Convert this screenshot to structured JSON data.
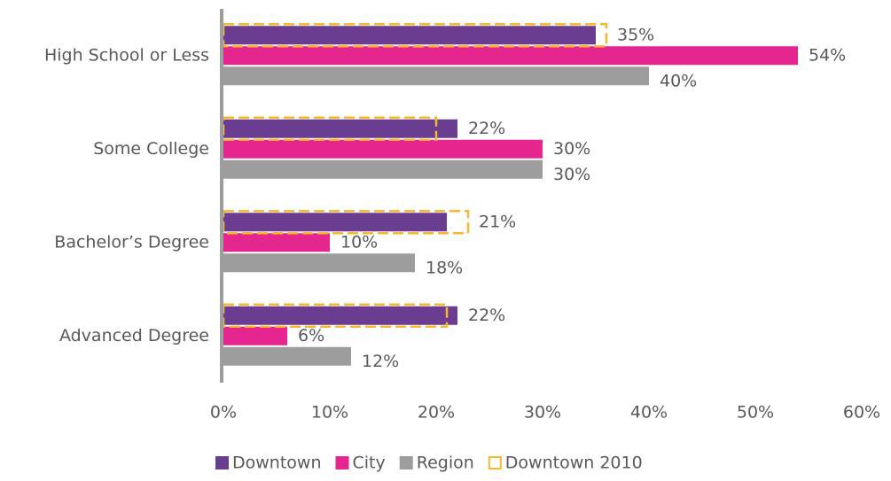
{
  "chart_data": {
    "type": "hbar",
    "categories": [
      "High School or Less",
      "Some College",
      "Bachelor’s Degree",
      "Advanced Degree"
    ],
    "series": [
      {
        "name": "Downtown",
        "color": "#6a3d91",
        "values": [
          35,
          22,
          21,
          22
        ],
        "value_labels": [
          "35%",
          "22%",
          "21%",
          "22%"
        ]
      },
      {
        "name": "City",
        "color": "#e4268e",
        "values": [
          54,
          30,
          10,
          6
        ],
        "value_labels": [
          "54%",
          "30%",
          "10%",
          "6%"
        ]
      },
      {
        "name": "Region",
        "color": "#9d9d9d",
        "values": [
          40,
          30,
          18,
          12
        ],
        "value_labels": [
          "40%",
          "30%",
          "18%",
          "12%"
        ]
      },
      {
        "name": "Downtown 2010",
        "color": "#f5b82e",
        "outline": true,
        "values": [
          36,
          20,
          23,
          21
        ]
      }
    ],
    "xlim": [
      0,
      60
    ],
    "xticks": [
      {
        "value": 0,
        "label": "0%"
      },
      {
        "value": 10,
        "label": "10%"
      },
      {
        "value": 20,
        "label": "20%"
      },
      {
        "value": 30,
        "label": "30%"
      },
      {
        "value": 40,
        "label": "40%"
      },
      {
        "value": 50,
        "label": "50%"
      },
      {
        "value": 60,
        "label": "60%"
      }
    ],
    "legend": "bottom"
  }
}
